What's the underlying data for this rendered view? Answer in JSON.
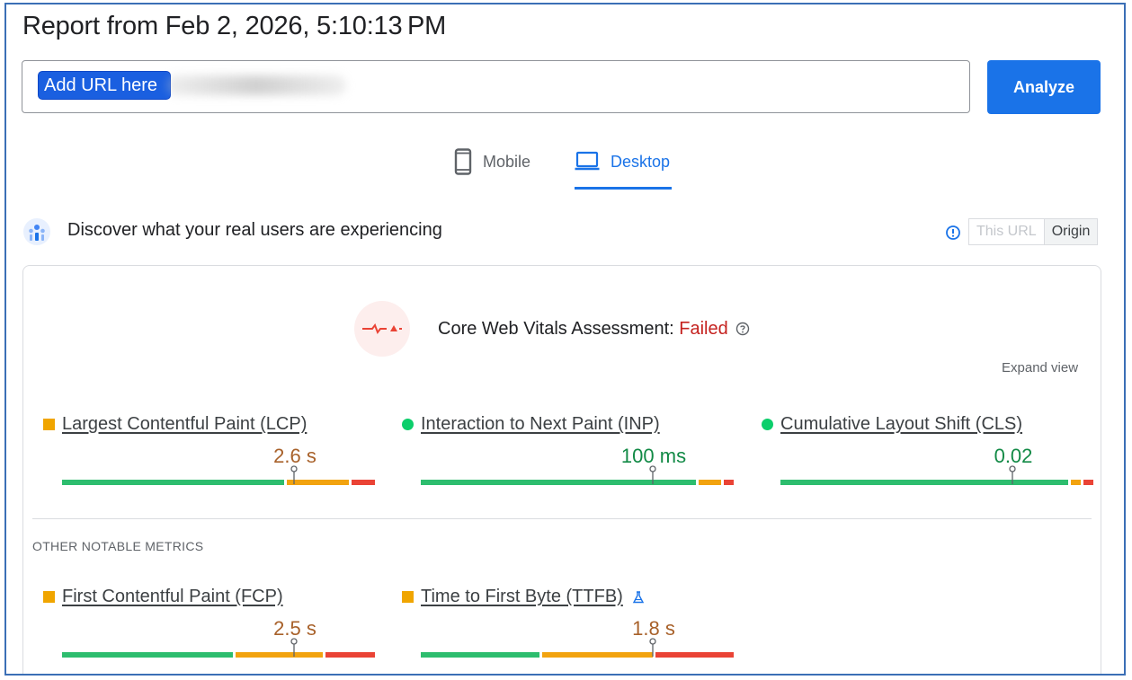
{
  "report": {
    "title": "Report from Feb 2, 2026, 5:10:13 PM"
  },
  "url_input": {
    "chip_label": "Add URL here"
  },
  "analyze_button": {
    "label": "Analyze"
  },
  "device_tabs": [
    {
      "label": "Mobile",
      "icon": "smartphone-icon",
      "selected": false
    },
    {
      "label": "Desktop",
      "icon": "laptop-icon",
      "selected": true
    }
  ],
  "field_data": {
    "title": "Discover what your real users are experiencing",
    "icon": "crux-users-icon",
    "toggle": {
      "this_url": "This URL",
      "origin": "Origin",
      "selected": "Origin"
    }
  },
  "assessment": {
    "label": "Core Web Vitals Assessment: ",
    "status": "Failed",
    "expand_label": "Expand view"
  },
  "core_metrics": [
    {
      "name": "Largest Contentful Paint (LCP)",
      "value": "2.6 s",
      "rating": "needs-improvement",
      "marker": "square",
      "distribution": {
        "good": 0.713,
        "needs_improvement": 0.209,
        "poor": 0.078
      },
      "pin_fraction": 0.74
    },
    {
      "name": "Interaction to Next Paint (INP)",
      "value": "100 ms",
      "rating": "good",
      "marker": "circle",
      "distribution": {
        "good": 0.885,
        "needs_improvement": 0.08,
        "poor": 0.035
      },
      "pin_fraction": 0.74
    },
    {
      "name": "Cumulative Layout Shift (CLS)",
      "value": "0.02",
      "rating": "good",
      "marker": "circle",
      "distribution": {
        "good": 0.925,
        "needs_improvement": 0.04,
        "poor": 0.035
      },
      "pin_fraction": 0.74
    }
  ],
  "other_metrics": {
    "heading": "OTHER NOTABLE METRICS",
    "items": [
      {
        "name": "First Contentful Paint (FCP)",
        "value": "2.5 s",
        "rating": "needs-improvement",
        "marker": "square",
        "distribution": {
          "good": 0.55,
          "needs_improvement": 0.287,
          "poor": 0.163
        },
        "pin_fraction": 0.74
      },
      {
        "name": "Time to First Byte (TTFB)",
        "value": "1.8 s",
        "rating": "needs-improvement",
        "marker": "square",
        "experimental_icon": "flask-icon",
        "distribution": {
          "good": 0.385,
          "needs_improvement": 0.36,
          "poor": 0.255
        },
        "pin_fraction": 0.74
      }
    ]
  },
  "colors": {
    "accent": "#1a73e8",
    "good": "#2dbd6e",
    "needs_improvement": "#f2a30f",
    "poor": "#ea4335",
    "failed": "#c5221f"
  }
}
